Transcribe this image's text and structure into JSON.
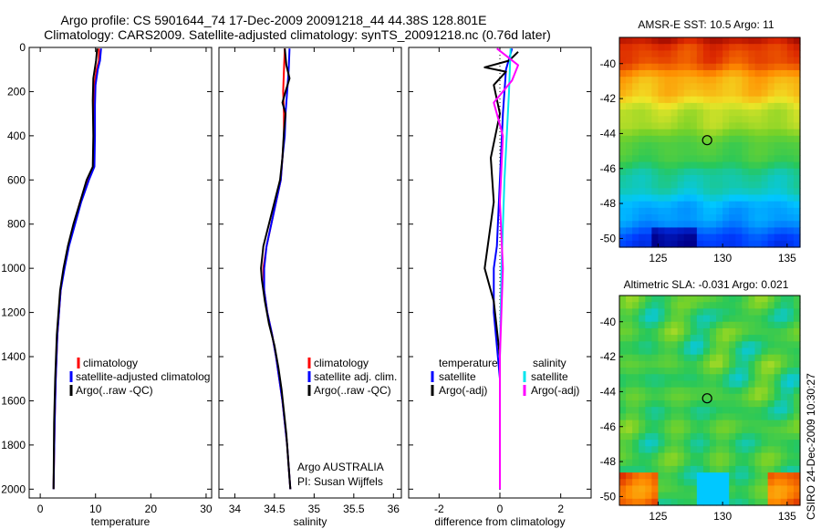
{
  "header": {
    "line1": "Argo profile: CS 5901644_74 17-Dec-2009 20091218_44 44.38S 128.801E",
    "line2": "Climatology: CARS2009. Satellite-adjusted climatology: synTS_20091218.nc (0.76d later)"
  },
  "colors": {
    "red": "#ff0000",
    "blue": "#0000ff",
    "black": "#000000",
    "cyan": "#00e5ee",
    "magenta": "#ff00ff"
  },
  "chart_data": [
    {
      "type": "line",
      "xlabel": "temperature",
      "xlim": [
        -2,
        31
      ],
      "xticks": [
        0,
        10,
        20,
        30
      ],
      "ylim": [
        2040,
        0
      ],
      "yticks": [
        0,
        200,
        400,
        600,
        800,
        1000,
        1200,
        1400,
        1600,
        1800,
        2000
      ],
      "legend": [
        "climatology",
        "satellite-adjusted climatolog",
        "Argo(..raw -QC)"
      ],
      "series": [
        {
          "name": "climatology",
          "color": "red",
          "points": [
            [
              10.6,
              5
            ],
            [
              10.6,
              60
            ],
            [
              10.2,
              100
            ],
            [
              9.8,
              170
            ],
            [
              9.7,
              260
            ],
            [
              9.8,
              400
            ],
            [
              9.7,
              540
            ],
            [
              8.6,
              600
            ],
            [
              7.2,
              700
            ],
            [
              6.1,
              800
            ],
            [
              5.1,
              900
            ],
            [
              4.3,
              1000
            ],
            [
              3.7,
              1100
            ],
            [
              3.1,
              1300
            ],
            [
              2.8,
              1500
            ],
            [
              2.6,
              1700
            ],
            [
              2.4,
              2000
            ]
          ]
        },
        {
          "name": "satellite-adjusted climatolog",
          "color": "blue",
          "points": [
            [
              11.0,
              5
            ],
            [
              10.8,
              60
            ],
            [
              10.4,
              100
            ],
            [
              10.0,
              170
            ],
            [
              9.9,
              260
            ],
            [
              9.9,
              400
            ],
            [
              9.8,
              540
            ],
            [
              8.8,
              600
            ],
            [
              7.4,
              700
            ],
            [
              6.3,
              800
            ],
            [
              5.2,
              900
            ],
            [
              4.4,
              1000
            ],
            [
              3.7,
              1100
            ],
            [
              3.1,
              1300
            ],
            [
              2.8,
              1500
            ],
            [
              2.6,
              1700
            ],
            [
              2.4,
              2000
            ]
          ]
        },
        {
          "name": "Argo(..raw -QC)",
          "color": "black",
          "points": [
            [
              10.3,
              5
            ],
            [
              10.1,
              60
            ],
            [
              9.6,
              140
            ],
            [
              9.5,
              240
            ],
            [
              9.6,
              400
            ],
            [
              9.5,
              540
            ],
            [
              8.4,
              600
            ],
            [
              7.2,
              700
            ],
            [
              6.0,
              800
            ],
            [
              5.0,
              900
            ],
            [
              4.2,
              1000
            ],
            [
              3.6,
              1100
            ],
            [
              3.0,
              1300
            ],
            [
              2.7,
              1500
            ],
            [
              2.5,
              1700
            ],
            [
              2.4,
              2000
            ]
          ]
        }
      ]
    },
    {
      "type": "line",
      "xlabel": "salinity",
      "xlim": [
        33.8,
        36.1
      ],
      "xticks": [
        34,
        34.5,
        35,
        35.5,
        36
      ],
      "ylim": [
        2040,
        0
      ],
      "yticks": [
        0,
        200,
        400,
        600,
        800,
        1000,
        1200,
        1400,
        1600,
        1800,
        2000
      ],
      "legend": [
        "climatology",
        "satellite adj. clim.",
        "Argo(..raw -QC)"
      ],
      "annotation": [
        "Argo AUSTRALIA",
        "PI: Susan Wijffels"
      ],
      "series": [
        {
          "name": "climatology",
          "color": "red",
          "points": [
            [
              34.63,
              5
            ],
            [
              34.62,
              100
            ],
            [
              34.61,
              200
            ],
            [
              34.62,
              300
            ],
            [
              34.62,
              400
            ],
            [
              34.6,
              500
            ],
            [
              34.58,
              600
            ],
            [
              34.52,
              700
            ],
            [
              34.46,
              800
            ],
            [
              34.4,
              900
            ],
            [
              34.36,
              1000
            ],
            [
              34.37,
              1100
            ],
            [
              34.41,
              1200
            ],
            [
              34.47,
              1300
            ],
            [
              34.52,
              1400
            ],
            [
              34.56,
              1500
            ],
            [
              34.6,
              1600
            ],
            [
              34.63,
              1700
            ],
            [
              34.66,
              1800
            ],
            [
              34.68,
              1900
            ],
            [
              34.7,
              2000
            ]
          ]
        },
        {
          "name": "satellite adj. clim.",
          "color": "blue",
          "points": [
            [
              34.69,
              5
            ],
            [
              34.68,
              100
            ],
            [
              34.66,
              200
            ],
            [
              34.64,
              300
            ],
            [
              34.63,
              400
            ],
            [
              34.6,
              500
            ],
            [
              34.58,
              600
            ],
            [
              34.52,
              700
            ],
            [
              34.46,
              800
            ],
            [
              34.4,
              900
            ],
            [
              34.37,
              1000
            ],
            [
              34.37,
              1100
            ],
            [
              34.41,
              1200
            ],
            [
              34.47,
              1300
            ],
            [
              34.52,
              1400
            ],
            [
              34.56,
              1500
            ],
            [
              34.6,
              1600
            ],
            [
              34.63,
              1700
            ],
            [
              34.66,
              1800
            ],
            [
              34.68,
              1900
            ],
            [
              34.7,
              2000
            ]
          ]
        },
        {
          "name": "Argo(..raw -QC)",
          "color": "black",
          "points": [
            [
              34.63,
              5
            ],
            [
              34.65,
              80
            ],
            [
              34.69,
              140
            ],
            [
              34.64,
              200
            ],
            [
              34.6,
              250
            ],
            [
              34.64,
              300
            ],
            [
              34.62,
              380
            ],
            [
              34.6,
              500
            ],
            [
              34.57,
              600
            ],
            [
              34.5,
              700
            ],
            [
              34.43,
              800
            ],
            [
              34.36,
              900
            ],
            [
              34.33,
              1000
            ],
            [
              34.34,
              1050
            ],
            [
              34.38,
              1150
            ],
            [
              34.43,
              1250
            ],
            [
              34.5,
              1350
            ],
            [
              34.55,
              1450
            ],
            [
              34.59,
              1550
            ],
            [
              34.62,
              1650
            ],
            [
              34.65,
              1750
            ],
            [
              34.68,
              1900
            ],
            [
              34.7,
              2000
            ]
          ]
        }
      ]
    },
    {
      "type": "line",
      "xlabel": "difference from climatology",
      "xlim": [
        -3,
        3
      ],
      "xticks": [
        -2,
        0,
        2
      ],
      "ylim": [
        2040,
        0
      ],
      "yticks": [
        0,
        200,
        400,
        600,
        800,
        1000,
        1200,
        1400,
        1600,
        1800,
        2000
      ],
      "legend_titles": [
        "temperature",
        "salinity"
      ],
      "legend": [
        "satellite",
        "Argo(-adj)",
        "satellite",
        "Argo(-adj)"
      ],
      "series": [
        {
          "name": "satellite",
          "group": "temperature",
          "color": "blue",
          "points": [
            [
              0.4,
              5
            ],
            [
              0.2,
              100
            ],
            [
              0.1,
              300
            ],
            [
              0.0,
              600
            ],
            [
              -0.1,
              900
            ],
            [
              -0.2,
              1000
            ],
            [
              -0.2,
              1200
            ],
            [
              0.0,
              1500
            ],
            [
              0.0,
              2000
            ]
          ]
        },
        {
          "name": "Argo(-adj)",
          "group": "temperature",
          "color": "black",
          "points": [
            [
              0.6,
              20
            ],
            [
              0.3,
              60
            ],
            [
              -0.5,
              90
            ],
            [
              0.2,
              110
            ],
            [
              -0.2,
              170
            ],
            [
              0.0,
              300
            ],
            [
              -0.3,
              500
            ],
            [
              -0.2,
              700
            ],
            [
              -0.5,
              1000
            ],
            [
              -0.2,
              1150
            ],
            [
              0.0,
              1400
            ],
            [
              0.0,
              2000
            ]
          ]
        },
        {
          "name": "satellite",
          "group": "salinity",
          "color": "cyan",
          "points": [
            [
              0.35,
              5
            ],
            [
              0.3,
              200
            ],
            [
              0.15,
              600
            ],
            [
              0.05,
              1000
            ],
            [
              0.0,
              1400
            ],
            [
              0.0,
              2000
            ]
          ]
        },
        {
          "name": "Argo(-adj)",
          "group": "salinity",
          "color": "magenta",
          "points": [
            [
              -0.1,
              5
            ],
            [
              0.6,
              80
            ],
            [
              0.4,
              150
            ],
            [
              -0.2,
              250
            ],
            [
              0.1,
              400
            ],
            [
              0.0,
              700
            ],
            [
              0.1,
              1000
            ],
            [
              0.0,
              1400
            ],
            [
              0.0,
              2000
            ]
          ]
        }
      ]
    },
    {
      "type": "heatmap",
      "title": "AMSR-E SST: 10.5  Argo: 11",
      "xlim": [
        122,
        136
      ],
      "xticks": [
        125,
        130,
        135
      ],
      "ylim": [
        -50.5,
        -38.5
      ],
      "yticks": [
        -40,
        -42,
        -44,
        -46,
        -48,
        -50
      ],
      "marker": {
        "x": 128.801,
        "y": -44.38
      }
    },
    {
      "type": "heatmap",
      "title": "Altimetric SLA: -0.031  Argo: 0.021",
      "xlim": [
        122,
        136
      ],
      "xticks": [
        125,
        130,
        135
      ],
      "ylim": [
        -50.5,
        -38.5
      ],
      "yticks": [
        -40,
        -42,
        -44,
        -46,
        -48,
        -50
      ],
      "marker": {
        "x": 128.801,
        "y": -44.38
      }
    }
  ],
  "footer": {
    "credit": "CSIRO 24-Dec-2009 10:30:27"
  }
}
